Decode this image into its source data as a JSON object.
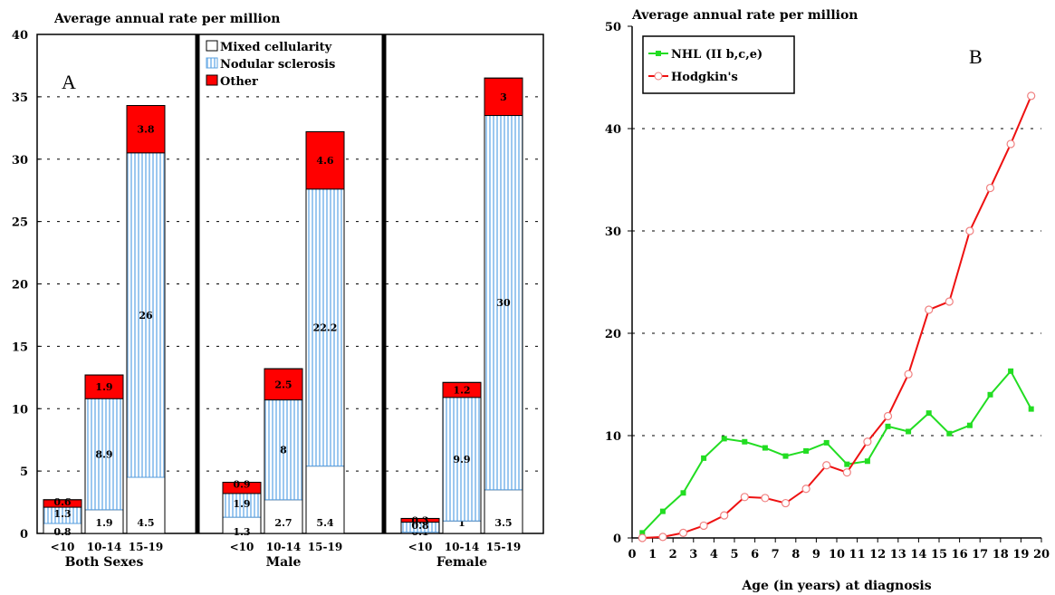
{
  "chart_data": [
    {
      "type": "bar",
      "panel_label": "A",
      "title": "Average annual rate per million",
      "ylim": [
        0,
        40
      ],
      "yticks": [
        0,
        5,
        10,
        15,
        20,
        25,
        30,
        35,
        40
      ],
      "grid": "dotted horizontal",
      "legend_position": "top-center",
      "colors": {
        "Mixed cellularity": "#ffffff",
        "Nodular sclerosis": "#9cc8f0",
        "Other": "#ff0000"
      },
      "groups": [
        {
          "name": "Both Sexes",
          "categories": [
            "<10",
            "10-14",
            "15-19"
          ],
          "series": [
            {
              "name": "Mixed cellularity",
              "values": [
                0.8,
                1.9,
                4.5
              ]
            },
            {
              "name": "Nodular sclerosis",
              "values": [
                1.3,
                8.9,
                26
              ]
            },
            {
              "name": "Other",
              "values": [
                0.6,
                1.9,
                3.8
              ]
            }
          ]
        },
        {
          "name": "Male",
          "categories": [
            "<10",
            "10-14",
            "15-19"
          ],
          "series": [
            {
              "name": "Mixed cellularity",
              "values": [
                1.3,
                2.7,
                5.4
              ]
            },
            {
              "name": "Nodular sclerosis",
              "values": [
                1.9,
                8,
                22.2
              ]
            },
            {
              "name": "Other",
              "values": [
                0.9,
                2.5,
                4.6
              ]
            }
          ]
        },
        {
          "name": "Female",
          "categories": [
            "<10",
            "10-14",
            "15-19"
          ],
          "series": [
            {
              "name": "Mixed cellularity",
              "values": [
                0.1,
                1,
                3.5
              ]
            },
            {
              "name": "Nodular sclerosis",
              "values": [
                0.8,
                9.9,
                30
              ]
            },
            {
              "name": "Other",
              "values": [
                0.3,
                1.2,
                3
              ]
            }
          ]
        }
      ]
    },
    {
      "type": "line",
      "panel_label": "B",
      "title": "Average annual rate per million",
      "xlabel": "Age (in years) at diagnosis",
      "xlim": [
        0,
        20
      ],
      "ylim": [
        0,
        50
      ],
      "xticks": [
        0,
        1,
        2,
        3,
        4,
        5,
        6,
        7,
        8,
        9,
        10,
        11,
        12,
        13,
        14,
        15,
        16,
        17,
        18,
        19,
        20
      ],
      "yticks": [
        0,
        10,
        20,
        30,
        40,
        50
      ],
      "grid": "dotted horizontal",
      "legend_position": "top-left",
      "x": [
        0.5,
        1.5,
        2.5,
        3.5,
        4.5,
        5.5,
        6.5,
        7.5,
        8.5,
        9.5,
        10.5,
        11.5,
        12.5,
        13.5,
        14.5,
        15.5,
        16.5,
        17.5,
        18.5,
        19.5
      ],
      "series": [
        {
          "name": "NHL (II b,c,e)",
          "color": "#22dd22",
          "marker": "square",
          "values": [
            0.5,
            2.6,
            4.4,
            7.8,
            9.7,
            9.4,
            8.8,
            8.0,
            8.5,
            9.3,
            7.2,
            7.5,
            10.9,
            10.4,
            12.2,
            10.2,
            11.0,
            14.0,
            16.3,
            12.6
          ]
        },
        {
          "name": "Hodgkin's",
          "color": "#ee1111",
          "marker": "open-circle",
          "values": [
            0,
            0.1,
            0.5,
            1.2,
            2.2,
            4.0,
            3.9,
            3.4,
            4.8,
            7.1,
            6.4,
            9.4,
            11.9,
            16.0,
            22.3,
            23.1,
            30.0,
            34.2,
            38.5,
            43.2
          ]
        }
      ]
    }
  ]
}
